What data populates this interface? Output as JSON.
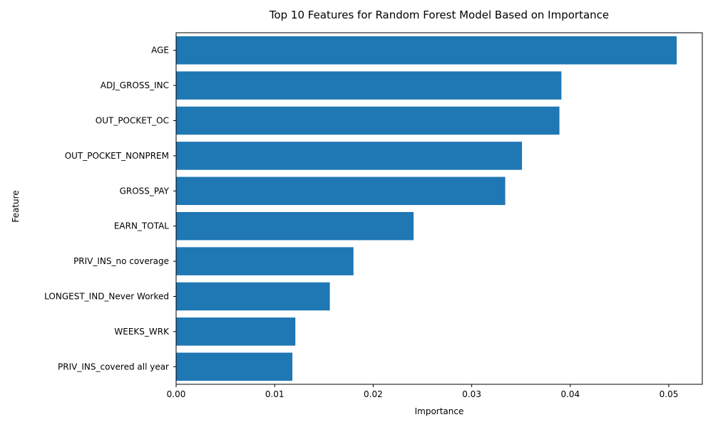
{
  "chart_data": {
    "type": "bar",
    "orientation": "horizontal",
    "title": "Top 10 Features for Random Forest Model Based on Importance",
    "xlabel": "Importance",
    "ylabel": "Feature",
    "categories": [
      "AGE",
      "ADJ_GROSS_INC",
      "OUT_POCKET_OC",
      "OUT_POCKET_NONPREM",
      "GROSS_PAY",
      "EARN_TOTAL",
      "PRIV_INS_no coverage",
      "LONGEST_IND_Never Worked",
      "WEEKS_WRK",
      "PRIV_INS_covered all year"
    ],
    "values": [
      0.0508,
      0.0391,
      0.0389,
      0.0351,
      0.0334,
      0.0241,
      0.018,
      0.0156,
      0.0121,
      0.0118
    ],
    "xlim": [
      0,
      0.0534
    ],
    "xticks": [
      0.0,
      0.01,
      0.02,
      0.03,
      0.04,
      0.05
    ],
    "xtick_labels": [
      "0.00",
      "0.01",
      "0.02",
      "0.03",
      "0.04",
      "0.05"
    ],
    "bar_color": "#1f77b4",
    "grid": false,
    "legend": "none"
  }
}
